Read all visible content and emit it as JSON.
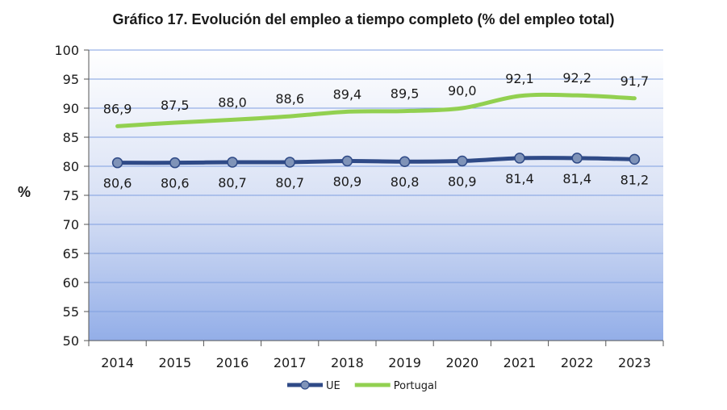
{
  "chart_data": {
    "type": "line",
    "title": "Gráfico 17. Evolución del empleo a tiempo completo (% del empleo total)",
    "ylabel": "%",
    "xlabel": "",
    "ylim": [
      50,
      100
    ],
    "yticks": [
      50,
      55,
      60,
      65,
      70,
      75,
      80,
      85,
      90,
      95,
      100
    ],
    "categories": [
      "2014",
      "2015",
      "2016",
      "2017",
      "2018",
      "2019",
      "2020",
      "2021",
      "2022",
      "2023"
    ],
    "series": [
      {
        "name": "UE",
        "color": "#2f4a87",
        "marker": "circle",
        "values": [
          80.6,
          80.6,
          80.7,
          80.7,
          80.9,
          80.8,
          80.9,
          81.4,
          81.4,
          81.2
        ],
        "labels": [
          "80,6",
          "80,6",
          "80,7",
          "80,7",
          "80,9",
          "80,8",
          "80,9",
          "81,4",
          "81,4",
          "81,2"
        ],
        "label_position": "below"
      },
      {
        "name": "Portugal",
        "color": "#92d050",
        "marker": "none",
        "values": [
          86.9,
          87.5,
          88.0,
          88.6,
          89.4,
          89.5,
          90.0,
          92.1,
          92.2,
          91.7
        ],
        "labels": [
          "86,9",
          "87,5",
          "88,0",
          "88,6",
          "89,4",
          "89,5",
          "90,0",
          "92,1",
          "92,2",
          "91,7"
        ],
        "label_position": "above"
      }
    ],
    "legend_position": "bottom",
    "grid": true,
    "plot_background": "gradient white-to-blue"
  }
}
